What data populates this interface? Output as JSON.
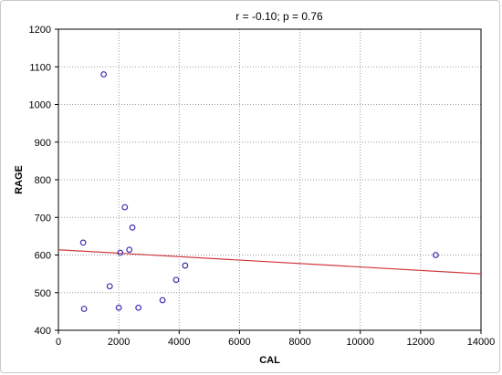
{
  "chart_data": {
    "type": "scatter",
    "title": "r = -0.10; p = 0.76",
    "xlabel": "CAL",
    "ylabel": "RAGE",
    "xlim": [
      0,
      14000
    ],
    "ylim": [
      400,
      1200
    ],
    "x_ticks": [
      0,
      2000,
      4000,
      6000,
      8000,
      10000,
      12000,
      14000
    ],
    "y_ticks": [
      400,
      500,
      600,
      700,
      800,
      900,
      1000,
      1100,
      1200
    ],
    "grid": true,
    "points": [
      {
        "x": 820,
        "y": 633
      },
      {
        "x": 850,
        "y": 457
      },
      {
        "x": 1500,
        "y": 1080
      },
      {
        "x": 1700,
        "y": 517
      },
      {
        "x": 2000,
        "y": 460
      },
      {
        "x": 2050,
        "y": 606
      },
      {
        "x": 2200,
        "y": 727
      },
      {
        "x": 2350,
        "y": 614
      },
      {
        "x": 2450,
        "y": 673
      },
      {
        "x": 2650,
        "y": 460
      },
      {
        "x": 3450,
        "y": 480
      },
      {
        "x": 3900,
        "y": 534
      },
      {
        "x": 4200,
        "y": 572
      },
      {
        "x": 12500,
        "y": 600
      }
    ],
    "fit_line": {
      "x": [
        0,
        14000
      ],
      "y": [
        614,
        550
      ]
    },
    "colors": {
      "points": "#3a2fb0",
      "fit_line": "#d0393b",
      "grid": "#9a9a9a",
      "axes": "#000000"
    }
  }
}
